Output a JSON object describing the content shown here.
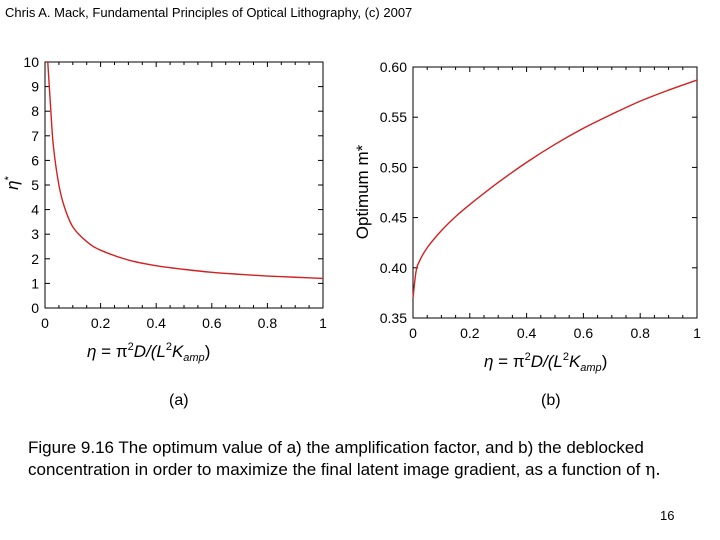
{
  "header": "Chris A. Mack, Fundamental Principles of Optical Lithography, (c) 2007",
  "panel_labels": [
    "(a)",
    "(b)"
  ],
  "caption": {
    "text": "Figure 9.16  The optimum value of a) the amplification factor, and b) the deblocked concentration in order to maximize the final latent image gradient, as a function of",
    "symbol": "η."
  },
  "page_number": "16",
  "colors": {
    "curve": "#d42020",
    "axis": "#000000"
  },
  "chart_data": [
    {
      "type": "line",
      "xlabel": "η = π²D/(L²K_amp)",
      "xlabel_parts": {
        "lhs": "η",
        "eq": " = π",
        "sup1": "2",
        "mid": "D/(L",
        "sup2": "2",
        "K": "K",
        "sub": "amp",
        "close": ")"
      },
      "ylabel": "η*",
      "ylabel_parts": {
        "base": "η",
        "star": "*"
      },
      "xlim": [
        0,
        1
      ],
      "ylim": [
        0,
        10
      ],
      "x_ticks": [
        "0",
        "0.2",
        "0.4",
        "0.6",
        "0.8",
        "1"
      ],
      "y_ticks": [
        "0",
        "1",
        "2",
        "3",
        "4",
        "5",
        "6",
        "7",
        "8",
        "9",
        "10"
      ],
      "series": [
        {
          "x": [
            0.01,
            0.02,
            0.03,
            0.05,
            0.07,
            0.1,
            0.15,
            0.2,
            0.3,
            0.4,
            0.5,
            0.6,
            0.7,
            0.8,
            0.9,
            1.0
          ],
          "y": [
            10.0,
            8.2,
            6.6,
            5.0,
            4.1,
            3.3,
            2.7,
            2.35,
            1.95,
            1.72,
            1.57,
            1.45,
            1.37,
            1.3,
            1.25,
            1.2
          ]
        }
      ]
    },
    {
      "type": "line",
      "xlabel": "η = π²D/(L²K_amp)",
      "xlabel_parts": {
        "lhs": "η",
        "eq": " = π",
        "sup1": "2",
        "mid": "D/(L",
        "sup2": "2",
        "K": "K",
        "sub": "amp",
        "close": ")"
      },
      "ylabel": "Optimum m*",
      "xlim": [
        0,
        1
      ],
      "ylim": [
        0.35,
        0.6
      ],
      "x_ticks": [
        "0",
        "0.2",
        "0.4",
        "0.6",
        "0.8",
        "1"
      ],
      "y_ticks": [
        "0.35",
        "0.40",
        "0.45",
        "0.50",
        "0.55",
        "0.60"
      ],
      "series": [
        {
          "x": [
            0.0,
            0.01,
            0.02,
            0.05,
            0.1,
            0.15,
            0.2,
            0.3,
            0.4,
            0.5,
            0.6,
            0.7,
            0.8,
            0.9,
            1.0
          ],
          "y": [
            0.37,
            0.395,
            0.405,
            0.42,
            0.437,
            0.451,
            0.463,
            0.485,
            0.505,
            0.523,
            0.539,
            0.553,
            0.566,
            0.577,
            0.587
          ]
        }
      ]
    }
  ]
}
